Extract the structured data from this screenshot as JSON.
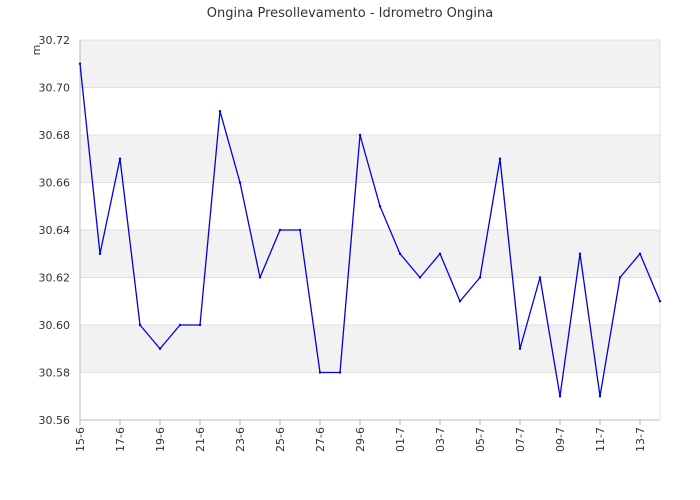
{
  "chart_data": {
    "type": "line",
    "title": "Ongina Presollevamento - Idrometro Ongina",
    "xlabel": "",
    "ylabel": "m",
    "ylim": [
      30.56,
      30.72
    ],
    "y_ticks": [
      "30.56",
      "30.58",
      "30.60",
      "30.62",
      "30.64",
      "30.66",
      "30.68",
      "30.70",
      "30.72"
    ],
    "x_tick_labels": [
      "15-6",
      "17-6",
      "19-6",
      "21-6",
      "23-6",
      "25-6",
      "27-6",
      "29-6",
      "01-7",
      "03-7",
      "05-7",
      "07-7",
      "09-7",
      "11-7",
      "13-7"
    ],
    "grid": true,
    "colors": {
      "line": "#0000e0",
      "band": "#f2f2f2",
      "gridline": "#e0e0e0",
      "axis": "#bbbbbb"
    },
    "series": [
      {
        "name": "",
        "x": [
          "15-6",
          "16-6",
          "17-6",
          "18-6",
          "19-6",
          "20-6",
          "21-6",
          "22-6",
          "23-6",
          "24-6",
          "25-6",
          "26-6",
          "27-6",
          "28-6",
          "29-6",
          "30-6",
          "01-7",
          "02-7",
          "03-7",
          "04-7",
          "05-7",
          "06-7",
          "07-7",
          "08-7",
          "09-7",
          "10-7",
          "11-7",
          "12-7",
          "13-7",
          "14-7"
        ],
        "values": [
          30.71,
          30.63,
          30.67,
          30.6,
          30.59,
          30.6,
          30.6,
          30.69,
          30.66,
          30.62,
          30.64,
          30.64,
          30.58,
          30.58,
          30.68,
          30.65,
          30.63,
          30.62,
          30.63,
          30.61,
          30.62,
          30.67,
          30.59,
          30.62,
          30.57,
          30.63,
          30.57,
          30.62,
          30.63,
          30.61
        ]
      }
    ]
  }
}
